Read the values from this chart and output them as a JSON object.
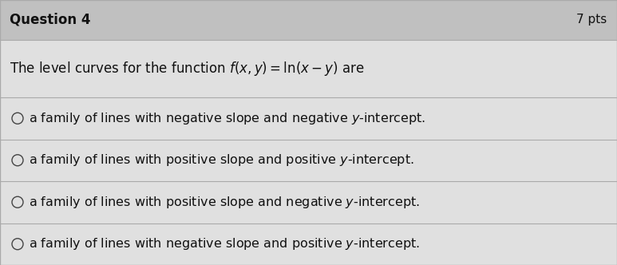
{
  "title": "Question 4",
  "pts": "7 pts",
  "question_plain": "The level curves for the function ",
  "question_math": "f(x, y) = ln(x − y)",
  "question_end": " are",
  "options": [
    "a family of lines with negative slope and negative y-intercept.",
    "a family of lines with positive slope and positive y-intercept.",
    "a family of lines with positive slope and negative y-intercept.",
    "a family of lines with negative slope and positive y-intercept."
  ],
  "bg_color": "#c8c8c8",
  "title_bg_color": "#c0c0c0",
  "content_bg_color": "#e0e0e0",
  "text_color": "#111111",
  "title_fontsize": 12,
  "question_fontsize": 12,
  "option_fontsize": 11.5,
  "pts_fontsize": 11,
  "divider_color": "#aaaaaa",
  "circle_color": "#444444"
}
